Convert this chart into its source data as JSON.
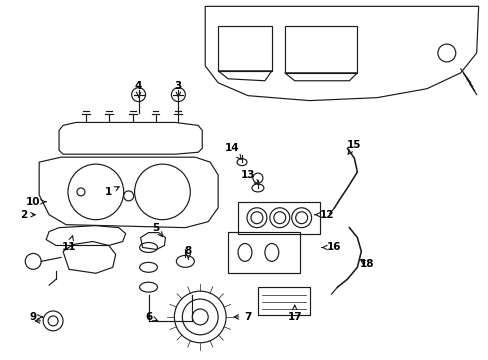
{
  "background_color": "#ffffff",
  "line_color": "#1a1a1a",
  "text_color": "#000000",
  "label_fontsize": 7.5,
  "fig_width": 4.89,
  "fig_height": 3.6,
  "labels_arrows": [
    [
      "1",
      108,
      192,
      122,
      185
    ],
    [
      "2",
      22,
      215,
      38,
      215
    ],
    [
      "3",
      178,
      85,
      178,
      100
    ],
    [
      "4",
      138,
      85,
      138,
      100
    ],
    [
      "5",
      155,
      228,
      163,
      238
    ],
    [
      "6",
      148,
      318,
      158,
      322
    ],
    [
      "7",
      248,
      318,
      230,
      318
    ],
    [
      "8",
      188,
      252,
      188,
      260
    ],
    [
      "9",
      32,
      318,
      42,
      318
    ],
    [
      "10",
      32,
      202,
      48,
      202
    ],
    [
      "11",
      68,
      248,
      72,
      235
    ],
    [
      "12",
      328,
      215,
      315,
      215
    ],
    [
      "13",
      248,
      175,
      260,
      185
    ],
    [
      "14",
      232,
      148,
      242,
      160
    ],
    [
      "15",
      355,
      145,
      348,
      155
    ],
    [
      "16",
      335,
      248,
      322,
      248
    ],
    [
      "17",
      295,
      318,
      295,
      305
    ],
    [
      "18",
      368,
      265,
      358,
      258
    ]
  ]
}
